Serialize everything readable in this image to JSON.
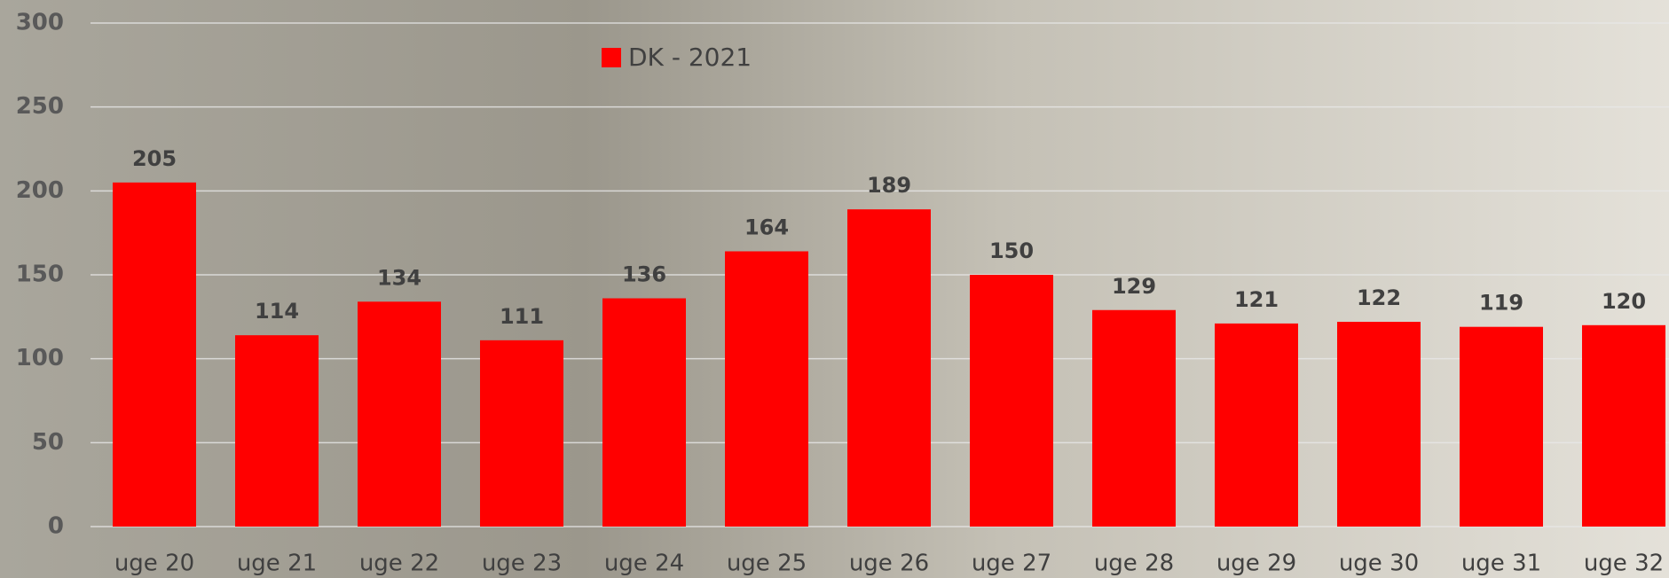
{
  "chart_data": {
    "type": "bar",
    "categories": [
      "uge 20",
      "uge 21",
      "uge 22",
      "uge 23",
      "uge 24",
      "uge 25",
      "uge 26",
      "uge 27",
      "uge 28",
      "uge 29",
      "uge 30",
      "uge 31",
      "uge 32"
    ],
    "series": [
      {
        "name": "DK - 2021",
        "color": "#ff0000",
        "values": [
          205,
          114,
          134,
          111,
          136,
          164,
          189,
          150,
          129,
          121,
          122,
          119,
          120
        ]
      }
    ],
    "ylim": [
      0,
      300
    ],
    "yticks": [
      0,
      50,
      100,
      150,
      200,
      250,
      300
    ],
    "grid": true,
    "legend": "top"
  }
}
